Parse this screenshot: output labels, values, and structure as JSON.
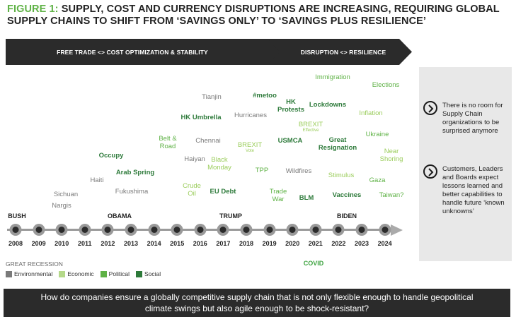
{
  "title": {
    "figure": "FIGURE 1:",
    "line1": "SUPPLY, COST AND CURRENCY DISRUPTIONS ARE INCREASING, REQUIRING GLOBAL",
    "line2": "SUPPLY CHAINS TO SHIFT FROM ‘SAVINGS ONLY’ TO ‘SAVINGS PLUS RESILIENCE’"
  },
  "eras": {
    "left": "FREE TRADE <> COST OPTIMIZATION & STABILITY",
    "right": "DISRUPTION <> RESILIENCE"
  },
  "callouts": [
    "There is no room for Supply Chain organizations to be surprised anymore",
    "Customers, Leaders and Boards expect lessons learned and better capabilities to handle future ‘known unknowns’"
  ],
  "events": {
    "immigration": "Immigration",
    "elections": "Elections",
    "tianjin": "Tianjin",
    "metoo": "#metoo",
    "hk_protests_1": "HK",
    "hk_protests_2": "Protests",
    "lockdowns": "Lockdowns",
    "hurricanes": "Hurricanes",
    "inflation": "Inflation",
    "hk_umbrella": "HK Umbrella",
    "brexit_eff": "BREXIT",
    "brexit_eff_sub": "Effective",
    "ukraine": "Ukraine",
    "belt_road_1": "Belt &",
    "belt_road_2": "Road",
    "chennai": "Chennai",
    "brexit_vote": "BREXIT",
    "brexit_vote_sub": "Vote",
    "usmca": "USMCA",
    "great_resignation_1": "Great",
    "great_resignation_2": "Resignation",
    "near_shoring_1": "Near",
    "near_shoring_2": "Shoring",
    "occupy": "Occupy",
    "haiyan": "Haiyan",
    "black_monday_1": "Black",
    "black_monday_2": "Monday",
    "arab_spring": "Arab Spring",
    "tpp": "TPP",
    "wildfires": "Wildfires",
    "stimulus": "Stimulus",
    "haiti": "Haiti",
    "gaza": "Gaza",
    "crude_oil_1": "Crude",
    "crude_oil_2": "Oil",
    "eu_debt": "EU Debt",
    "trade_war_1": "Trade",
    "trade_war_2": "War",
    "sichuan": "Sichuan",
    "fukushima": "Fukushima",
    "vaccines": "Vaccines",
    "taiwan": "Taiwan?",
    "blm": "BLM",
    "nargis": "Nargis"
  },
  "presidents": [
    "BUSH",
    "OBAMA",
    "TRUMP",
    "BIDEN"
  ],
  "years": [
    "2008",
    "2009",
    "2010",
    "2011",
    "2012",
    "2013",
    "2014",
    "2015",
    "2016",
    "2017",
    "2018",
    "2019",
    "2020",
    "2021",
    "2022",
    "2023",
    "2024"
  ],
  "great_recession": "GREAT RECESSION",
  "covid": "COVID",
  "legend": [
    {
      "label": "Environmental",
      "color": "#7a7a7a"
    },
    {
      "label": "Economic",
      "color": "#b5d98a"
    },
    {
      "label": "Political",
      "color": "#5fb246"
    },
    {
      "label": "Social",
      "color": "#2d7a3a"
    }
  ],
  "question": "How do companies ensure a globally competitive supply chain that is not only flexible enough to handle geopolitical climate swings but also agile enough to be shock-resistant?"
}
